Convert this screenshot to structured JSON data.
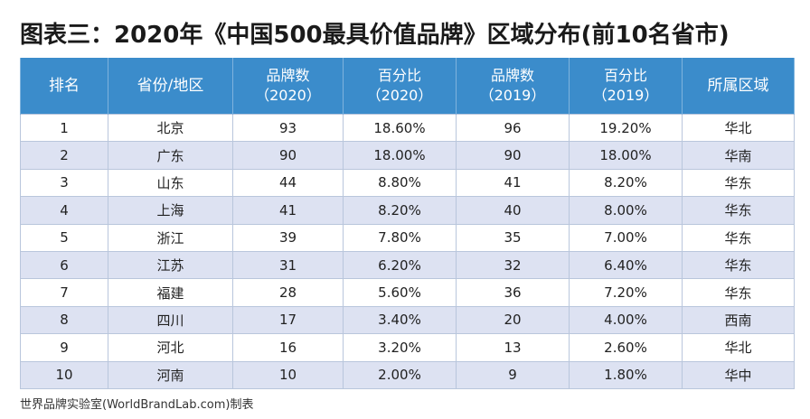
{
  "title": "图表三：2020年《中国500最具价值品牌》区域分布(前10名省市)",
  "headers": {
    "rank": "排名",
    "province": "省份/地区",
    "brands_2020": "品牌数",
    "brands_2020_year": "（2020）",
    "pct_2020": "百分比",
    "pct_2020_year": "（2020）",
    "brands_2019": "品牌数",
    "brands_2019_year": "（2019）",
    "pct_2019": "百分比",
    "pct_2019_year": "（2019）",
    "region": "所属区域"
  },
  "rows": [
    {
      "rank": "1",
      "province": "北京",
      "brands_2020": "93",
      "pct_2020": "18.60%",
      "brands_2019": "96",
      "pct_2019": "19.20%",
      "region": "华北"
    },
    {
      "rank": "2",
      "province": "广东",
      "brands_2020": "90",
      "pct_2020": "18.00%",
      "brands_2019": "90",
      "pct_2019": "18.00%",
      "region": "华南"
    },
    {
      "rank": "3",
      "province": "山东",
      "brands_2020": "44",
      "pct_2020": "8.80%",
      "brands_2019": "41",
      "pct_2019": "8.20%",
      "region": "华东"
    },
    {
      "rank": "4",
      "province": "上海",
      "brands_2020": "41",
      "pct_2020": "8.20%",
      "brands_2019": "40",
      "pct_2019": "8.00%",
      "region": "华东"
    },
    {
      "rank": "5",
      "province": "浙江",
      "brands_2020": "39",
      "pct_2020": "7.80%",
      "brands_2019": "35",
      "pct_2019": "7.00%",
      "region": "华东"
    },
    {
      "rank": "6",
      "province": "江苏",
      "brands_2020": "31",
      "pct_2020": "6.20%",
      "brands_2019": "32",
      "pct_2019": "6.40%",
      "region": "华东"
    },
    {
      "rank": "7",
      "province": "福建",
      "brands_2020": "28",
      "pct_2020": "5.60%",
      "brands_2019": "36",
      "pct_2019": "7.20%",
      "region": "华东"
    },
    {
      "rank": "8",
      "province": "四川",
      "brands_2020": "17",
      "pct_2020": "3.40%",
      "brands_2019": "20",
      "pct_2019": "4.00%",
      "region": "西南"
    },
    {
      "rank": "9",
      "province": "河北",
      "brands_2020": "16",
      "pct_2020": "3.20%",
      "brands_2019": "13",
      "pct_2019": "2.60%",
      "region": "华北"
    },
    {
      "rank": "10",
      "province": "河南",
      "brands_2020": "10",
      "pct_2020": "2.00%",
      "brands_2019": "9",
      "pct_2019": "1.80%",
      "region": "华中"
    }
  ],
  "footnote": "世界品牌实验室(WorldBrandLab.com)制表",
  "colors": {
    "header_bg": "#3b8ccb",
    "row_alt_bg": "#dde2f2"
  }
}
